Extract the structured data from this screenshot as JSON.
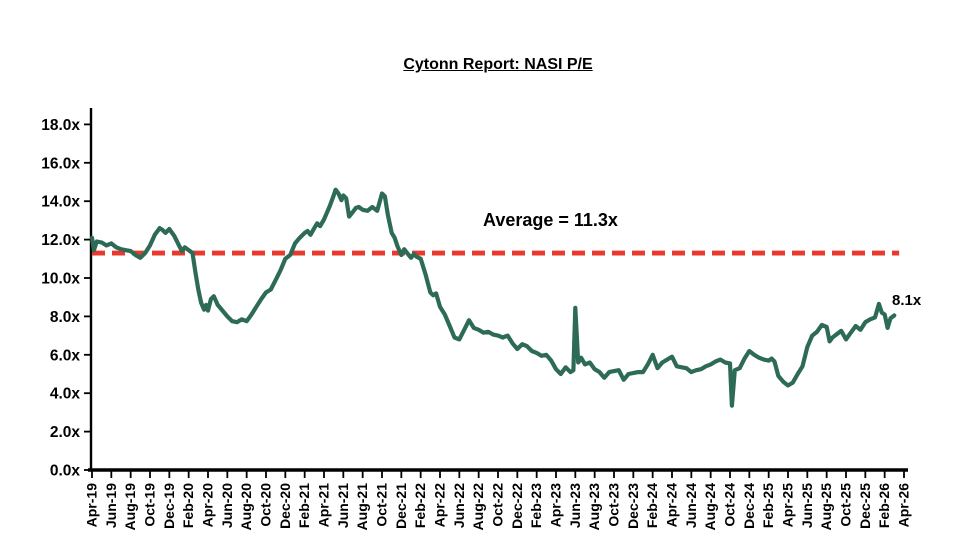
{
  "header": {
    "title": "Cytonn Report: NASI P/E"
  },
  "annotations": {
    "average_label": "Average = 11.3x",
    "last_value_label": "8.1x"
  },
  "colors": {
    "background": "#ffffff",
    "series_line": "#2E6B57",
    "average_line": "#E8392F",
    "axis": "#000000",
    "text": "#000000"
  },
  "chart_data": {
    "type": "line",
    "title": "Cytonn Report: NASI P/E",
    "xlabel": "",
    "ylabel": "",
    "grid": false,
    "legend_position": "none",
    "y_ticks": [
      0,
      2,
      4,
      6,
      8,
      10,
      12,
      14,
      16,
      18
    ],
    "y_tick_labels": [
      "0.0x",
      "2.0x",
      "4.0x",
      "6.0x",
      "8.0x",
      "10.0x",
      "12.0x",
      "14.0x",
      "16.0x",
      "18.0x"
    ],
    "ylim": [
      0,
      18.9
    ],
    "x_tick_labels": [
      "Apr-19",
      "Jun-19",
      "Aug-19",
      "Oct-19",
      "Dec-19",
      "Feb-20",
      "Apr-20",
      "Jun-20",
      "Aug-20",
      "Oct-20",
      "Dec-20",
      "Feb-21",
      "Apr-21",
      "Jun-21",
      "Aug-21",
      "Oct-21",
      "Dec-21",
      "Feb-22",
      "Apr-22",
      "Jun-22",
      "Aug-22",
      "Oct-22",
      "Dec-22",
      "Feb-23",
      "Apr-23",
      "Jun-23",
      "Aug-23",
      "Oct-23",
      "Dec-23",
      "Feb-24",
      "Apr-24",
      "Jun-24",
      "Aug-24",
      "Oct-24",
      "Dec-24",
      "Feb-25",
      "Apr-25",
      "Jun-25",
      "Aug-25",
      "Oct-25",
      "Dec-25",
      "Feb-26",
      "Apr-26"
    ],
    "x_tick_interval_months": 2,
    "x_total_months": 84,
    "x_description": "months since Apr-2019, data traced at sub-monthly resolution",
    "average": {
      "value": 11.3,
      "label": "Average = 11.3x",
      "style": "dashed",
      "x_start_month": 0,
      "x_end_month": 83.5
    },
    "last_point": {
      "label": "8.1x",
      "value": 8.1
    },
    "series": [
      {
        "name": "NASI P/E",
        "points": [
          [
            0,
            12.1
          ],
          [
            0.2,
            11.45
          ],
          [
            0.5,
            11.9
          ],
          [
            1,
            11.85
          ],
          [
            1.5,
            11.7
          ],
          [
            2,
            11.8
          ],
          [
            2.5,
            11.6
          ],
          [
            3,
            11.5
          ],
          [
            3.5,
            11.45
          ],
          [
            4,
            11.4
          ],
          [
            4.5,
            11.2
          ],
          [
            5,
            11.05
          ],
          [
            5.5,
            11.3
          ],
          [
            6,
            11.7
          ],
          [
            6.5,
            12.25
          ],
          [
            7,
            12.6
          ],
          [
            7.3,
            12.5
          ],
          [
            7.6,
            12.35
          ],
          [
            8,
            12.55
          ],
          [
            8.5,
            12.2
          ],
          [
            9,
            11.7
          ],
          [
            9.3,
            11.4
          ],
          [
            9.6,
            11.6
          ],
          [
            10,
            11.45
          ],
          [
            10.4,
            11.3
          ],
          [
            10.7,
            10.3
          ],
          [
            11,
            9.4
          ],
          [
            11.3,
            8.7
          ],
          [
            11.6,
            8.35
          ],
          [
            11.8,
            8.6
          ],
          [
            12,
            8.3
          ],
          [
            12.3,
            8.9
          ],
          [
            12.6,
            9.05
          ],
          [
            13,
            8.6
          ],
          [
            13.5,
            8.3
          ],
          [
            14,
            8.0
          ],
          [
            14.5,
            7.75
          ],
          [
            15,
            7.7
          ],
          [
            15.5,
            7.85
          ],
          [
            16,
            7.75
          ],
          [
            16.5,
            8.1
          ],
          [
            17,
            8.5
          ],
          [
            17.5,
            8.9
          ],
          [
            18,
            9.25
          ],
          [
            18.5,
            9.4
          ],
          [
            19,
            9.9
          ],
          [
            19.5,
            10.4
          ],
          [
            20,
            11.0
          ],
          [
            20.5,
            11.2
          ],
          [
            21,
            11.8
          ],
          [
            21.5,
            12.1
          ],
          [
            22,
            12.35
          ],
          [
            22.3,
            12.45
          ],
          [
            22.6,
            12.25
          ],
          [
            23,
            12.6
          ],
          [
            23.3,
            12.85
          ],
          [
            23.6,
            12.7
          ],
          [
            24,
            13.05
          ],
          [
            24.3,
            13.4
          ],
          [
            24.6,
            13.75
          ],
          [
            25,
            14.3
          ],
          [
            25.2,
            14.6
          ],
          [
            25.5,
            14.4
          ],
          [
            25.8,
            14.05
          ],
          [
            26,
            14.3
          ],
          [
            26.3,
            14.15
          ],
          [
            26.6,
            13.2
          ],
          [
            27,
            13.45
          ],
          [
            27.3,
            13.65
          ],
          [
            27.6,
            13.7
          ],
          [
            28,
            13.55
          ],
          [
            28.5,
            13.5
          ],
          [
            29,
            13.7
          ],
          [
            29.5,
            13.5
          ],
          [
            30,
            14.4
          ],
          [
            30.3,
            14.25
          ],
          [
            30.6,
            13.3
          ],
          [
            31,
            12.35
          ],
          [
            31.3,
            12.1
          ],
          [
            31.6,
            11.65
          ],
          [
            32,
            11.2
          ],
          [
            32.3,
            11.5
          ],
          [
            32.6,
            11.3
          ],
          [
            33,
            11.05
          ],
          [
            33.3,
            11.25
          ],
          [
            33.6,
            11.1
          ],
          [
            34,
            11.0
          ],
          [
            34.5,
            10.2
          ],
          [
            35,
            9.25
          ],
          [
            35.3,
            9.1
          ],
          [
            35.6,
            9.2
          ],
          [
            36,
            8.5
          ],
          [
            36.5,
            8.1
          ],
          [
            37,
            7.5
          ],
          [
            37.5,
            6.9
          ],
          [
            38,
            6.8
          ],
          [
            38.5,
            7.3
          ],
          [
            39,
            7.8
          ],
          [
            39.5,
            7.4
          ],
          [
            40,
            7.3
          ],
          [
            40.5,
            7.15
          ],
          [
            41,
            7.2
          ],
          [
            41.5,
            7.05
          ],
          [
            42,
            7.0
          ],
          [
            42.5,
            6.9
          ],
          [
            43,
            7.0
          ],
          [
            43.5,
            6.6
          ],
          [
            44,
            6.3
          ],
          [
            44.5,
            6.55
          ],
          [
            45,
            6.45
          ],
          [
            45.5,
            6.2
          ],
          [
            46,
            6.1
          ],
          [
            46.5,
            5.95
          ],
          [
            47,
            6.0
          ],
          [
            47.5,
            5.7
          ],
          [
            48,
            5.25
          ],
          [
            48.5,
            5.0
          ],
          [
            49,
            5.35
          ],
          [
            49.5,
            5.1
          ],
          [
            49.8,
            5.2
          ],
          [
            50,
            8.45
          ],
          [
            50.3,
            5.6
          ],
          [
            50.6,
            5.85
          ],
          [
            51,
            5.5
          ],
          [
            51.5,
            5.6
          ],
          [
            52,
            5.25
          ],
          [
            52.5,
            5.1
          ],
          [
            53,
            4.8
          ],
          [
            53.5,
            5.1
          ],
          [
            54,
            5.15
          ],
          [
            54.5,
            5.2
          ],
          [
            55,
            4.7
          ],
          [
            55.5,
            5.0
          ],
          [
            56,
            5.05
          ],
          [
            56.5,
            5.1
          ],
          [
            57,
            5.1
          ],
          [
            57.5,
            5.5
          ],
          [
            58,
            6.0
          ],
          [
            58.5,
            5.3
          ],
          [
            59,
            5.6
          ],
          [
            59.5,
            5.75
          ],
          [
            60,
            5.9
          ],
          [
            60.5,
            5.4
          ],
          [
            61,
            5.35
          ],
          [
            61.5,
            5.3
          ],
          [
            62,
            5.1
          ],
          [
            62.5,
            5.2
          ],
          [
            63,
            5.25
          ],
          [
            63.5,
            5.4
          ],
          [
            64,
            5.5
          ],
          [
            64.5,
            5.65
          ],
          [
            65,
            5.75
          ],
          [
            65.5,
            5.6
          ],
          [
            66,
            5.55
          ],
          [
            66.2,
            3.35
          ],
          [
            66.5,
            5.2
          ],
          [
            67,
            5.3
          ],
          [
            67.5,
            5.8
          ],
          [
            68,
            6.2
          ],
          [
            68.5,
            6.0
          ],
          [
            69,
            5.85
          ],
          [
            69.5,
            5.75
          ],
          [
            70,
            5.7
          ],
          [
            70.3,
            5.8
          ],
          [
            70.6,
            5.65
          ],
          [
            71,
            4.9
          ],
          [
            71.5,
            4.6
          ],
          [
            72,
            4.4
          ],
          [
            72.5,
            4.55
          ],
          [
            73,
            5.0
          ],
          [
            73.5,
            5.4
          ],
          [
            74,
            6.4
          ],
          [
            74.5,
            7.0
          ],
          [
            75,
            7.2
          ],
          [
            75.5,
            7.55
          ],
          [
            76,
            7.45
          ],
          [
            76.3,
            6.7
          ],
          [
            76.6,
            6.9
          ],
          [
            77,
            7.05
          ],
          [
            77.5,
            7.25
          ],
          [
            78,
            6.8
          ],
          [
            78.5,
            7.15
          ],
          [
            79,
            7.5
          ],
          [
            79.5,
            7.3
          ],
          [
            80,
            7.7
          ],
          [
            80.5,
            7.85
          ],
          [
            81,
            7.95
          ],
          [
            81.4,
            8.65
          ],
          [
            81.7,
            8.2
          ],
          [
            82,
            8.1
          ],
          [
            82.3,
            7.4
          ],
          [
            82.6,
            7.9
          ],
          [
            83,
            8.05
          ]
        ]
      }
    ]
  }
}
